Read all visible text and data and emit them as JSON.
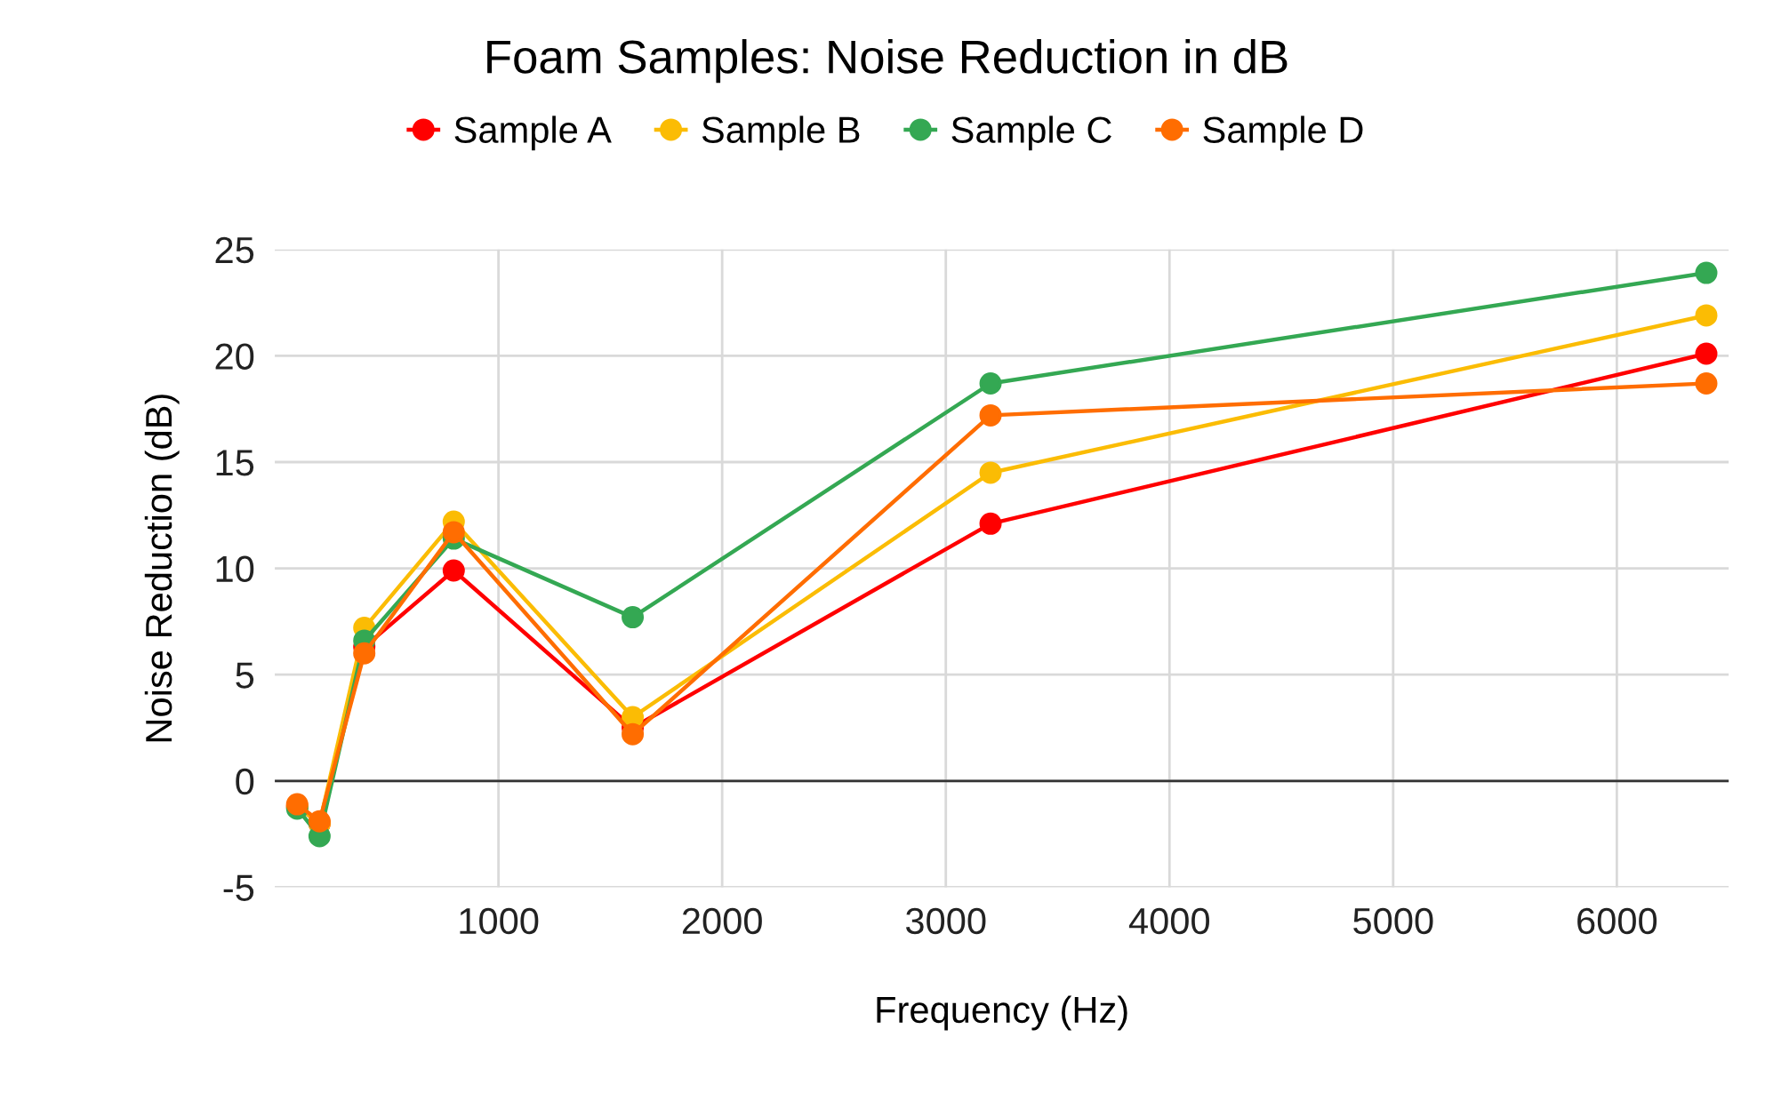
{
  "chart_data": {
    "type": "line",
    "title": "Foam Samples: Noise Reduction in dB",
    "xlabel": "Frequency (Hz)",
    "ylabel": "Noise Reduction (dB)",
    "x": [
      100,
      200,
      400,
      800,
      1600,
      3200,
      6400
    ],
    "series": [
      {
        "name": "Sample A",
        "color": "#ff0000",
        "values": [
          -1.2,
          -2.0,
          6.3,
          9.9,
          2.5,
          12.1,
          20.1
        ]
      },
      {
        "name": "Sample B",
        "color": "#fbbc04",
        "values": [
          -1.2,
          -2.0,
          7.2,
          12.2,
          3.0,
          14.5,
          21.9
        ]
      },
      {
        "name": "Sample C",
        "color": "#34a853",
        "values": [
          -1.3,
          -2.6,
          6.6,
          11.4,
          7.7,
          18.7,
          23.9
        ]
      },
      {
        "name": "Sample D",
        "color": "#ff6d01",
        "values": [
          -1.1,
          -1.9,
          6.0,
          11.7,
          2.2,
          17.2,
          18.7
        ]
      }
    ],
    "xlim": [
      0,
      6500
    ],
    "xticks": [
      1000,
      2000,
      3000,
      4000,
      5000,
      6000
    ],
    "ylim": [
      -5,
      25
    ],
    "yticks": [
      -5,
      0,
      5,
      10,
      15,
      20,
      25
    ],
    "ref_lines": [
      {
        "axis": "y",
        "value": 0,
        "color": "#333333"
      }
    ],
    "grid": true,
    "legend": "top",
    "marker": "circle",
    "line_style": "solid"
  }
}
